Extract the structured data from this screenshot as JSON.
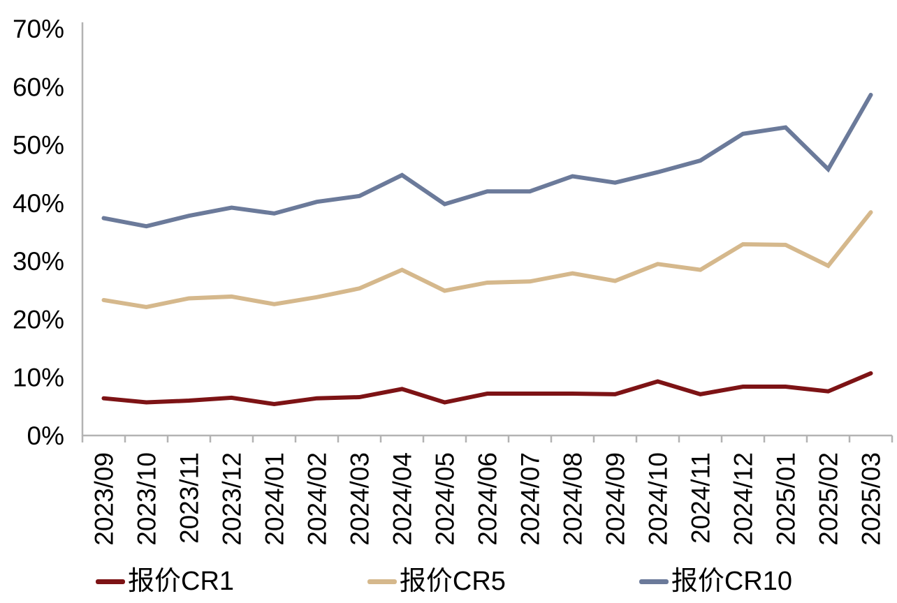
{
  "chart_data": {
    "type": "line",
    "title": "",
    "xlabel": "",
    "ylabel": "",
    "grid": false,
    "legend_position": "bottom",
    "ylim": [
      0,
      70
    ],
    "ytick_step": 10,
    "ytick_labels": [
      "0%",
      "10%",
      "20%",
      "30%",
      "40%",
      "50%",
      "60%",
      "70%"
    ],
    "categories": [
      "2023/09",
      "2023/10",
      "2023/11",
      "2023/12",
      "2024/01",
      "2024/02",
      "2024/03",
      "2024/04",
      "2024/05",
      "2024/06",
      "2024/07",
      "2024/08",
      "2024/09",
      "2024/10",
      "2024/11",
      "2024/12",
      "2025/01",
      "2025/02",
      "2025/03"
    ],
    "series": [
      {
        "name": "报价CR1",
        "color": "#7D1315",
        "values": [
          6.4,
          5.7,
          6.0,
          6.5,
          5.4,
          6.4,
          6.6,
          8.0,
          5.7,
          7.2,
          7.2,
          7.2,
          7.1,
          9.3,
          7.1,
          8.4,
          8.4,
          7.6,
          10.7
        ]
      },
      {
        "name": "报价CR5",
        "color": "#D5B88C",
        "values": [
          23.3,
          22.1,
          23.6,
          23.9,
          22.6,
          23.8,
          25.3,
          28.5,
          24.9,
          26.3,
          26.5,
          27.9,
          26.6,
          29.5,
          28.5,
          32.9,
          32.8,
          29.2,
          38.4
        ]
      },
      {
        "name": "报价CR10",
        "color": "#6B7A9A",
        "values": [
          37.4,
          36.0,
          37.8,
          39.2,
          38.2,
          40.2,
          41.2,
          44.8,
          39.8,
          42.0,
          42.0,
          44.6,
          43.5,
          45.3,
          47.3,
          51.9,
          53.0,
          45.8,
          58.6
        ]
      }
    ],
    "axis_color": "#b3b3b3",
    "label_color": "#000000"
  }
}
